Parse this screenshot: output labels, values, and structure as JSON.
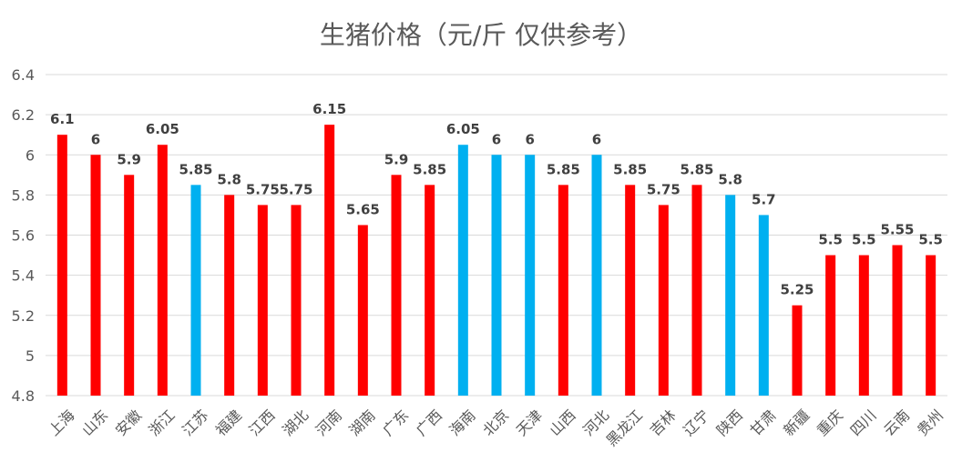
{
  "chart_data": {
    "type": "bar",
    "title": "生猪价格（元/斤 仅供参考）",
    "xlabel": "",
    "ylabel": "",
    "ylim": [
      4.8,
      6.4
    ],
    "yticks": [
      "4.8",
      "5",
      "5.2",
      "5.4",
      "5.6",
      "5.8",
      "6",
      "6.2",
      "6.4"
    ],
    "grid": true,
    "legend": "none",
    "categories": [
      "上海",
      "山东",
      "安徽",
      "浙江",
      "江苏",
      "福建",
      "江西",
      "湖北",
      "河南",
      "湖南",
      "广东",
      "广西",
      "海南",
      "北京",
      "天津",
      "山西",
      "河北",
      "黑龙江",
      "吉林",
      "辽宁",
      "陕西",
      "甘肃",
      "新疆",
      "重庆",
      "四川",
      "云南",
      "贵州"
    ],
    "values": [
      6.1,
      6,
      5.9,
      6.05,
      5.85,
      5.8,
      5.75,
      5.75,
      6.15,
      5.65,
      5.9,
      5.85,
      6.05,
      6,
      6,
      5.85,
      6,
      5.85,
      5.75,
      5.85,
      5.8,
      5.7,
      5.25,
      5.5,
      5.5,
      5.55,
      5.5
    ],
    "value_labels": [
      "6.1",
      "6",
      "5.9",
      "6.05",
      "5.85",
      "5.8",
      "5.75",
      "5.75",
      "6.15",
      "5.65",
      "5.9",
      "5.85",
      "6.05",
      "6",
      "6",
      "5.85",
      "6",
      "5.85",
      "5.75",
      "5.85",
      "5.8",
      "5.7",
      "5.25",
      "5.5",
      "5.5",
      "5.55",
      "5.5"
    ],
    "bar_colors": [
      "#ff0000",
      "#ff0000",
      "#ff0000",
      "#ff0000",
      "#00b0f0",
      "#ff0000",
      "#ff0000",
      "#ff0000",
      "#ff0000",
      "#ff0000",
      "#ff0000",
      "#ff0000",
      "#00b0f0",
      "#00b0f0",
      "#00b0f0",
      "#ff0000",
      "#00b0f0",
      "#ff0000",
      "#ff0000",
      "#ff0000",
      "#00b0f0",
      "#00b0f0",
      "#ff0000",
      "#ff0000",
      "#ff0000",
      "#ff0000",
      "#ff0000"
    ]
  },
  "colors": {
    "gridline": "#d9d9d9",
    "axis_text": "#595959",
    "label_text": "#404040"
  }
}
